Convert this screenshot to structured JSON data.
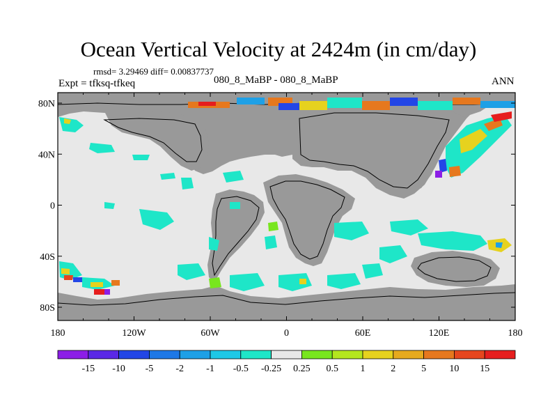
{
  "title": "Ocean Vertical Velocity at 2424m (in cm/day)",
  "stats_text": "rmsd= 3.29469 diff= 0.00837737",
  "expt_text": "Expt = tfksq-tfkeq",
  "case_text": "080_8_MaBP - 080_8_MaBP",
  "season_text": "ANN",
  "colors": {
    "land": "#999999",
    "near_zero": "#e8e8e8",
    "coast": "#000000"
  },
  "map_axes": {
    "x_ticks": [
      "180",
      "120W",
      "60W",
      "0",
      "60E",
      "120E",
      "180"
    ],
    "y_ticks": [
      "80N",
      "40N",
      "0",
      "40S",
      "80S"
    ]
  },
  "colorbar": {
    "levels": [
      "-15",
      "-10",
      "-5",
      "-2",
      "-1",
      "-0.5",
      "-0.25",
      "0.25",
      "0.5",
      "1",
      "2",
      "5",
      "10",
      "15"
    ],
    "colors": [
      "#8c1ee6",
      "#5a28e6",
      "#2346e6",
      "#1e78e6",
      "#1ea0e6",
      "#1ec8e6",
      "#1ee6c8",
      "#e8e8e8",
      "#78e61e",
      "#b4e61e",
      "#e6d21e",
      "#e6aa1e",
      "#e6781e",
      "#e6461e",
      "#e61e1e"
    ]
  }
}
